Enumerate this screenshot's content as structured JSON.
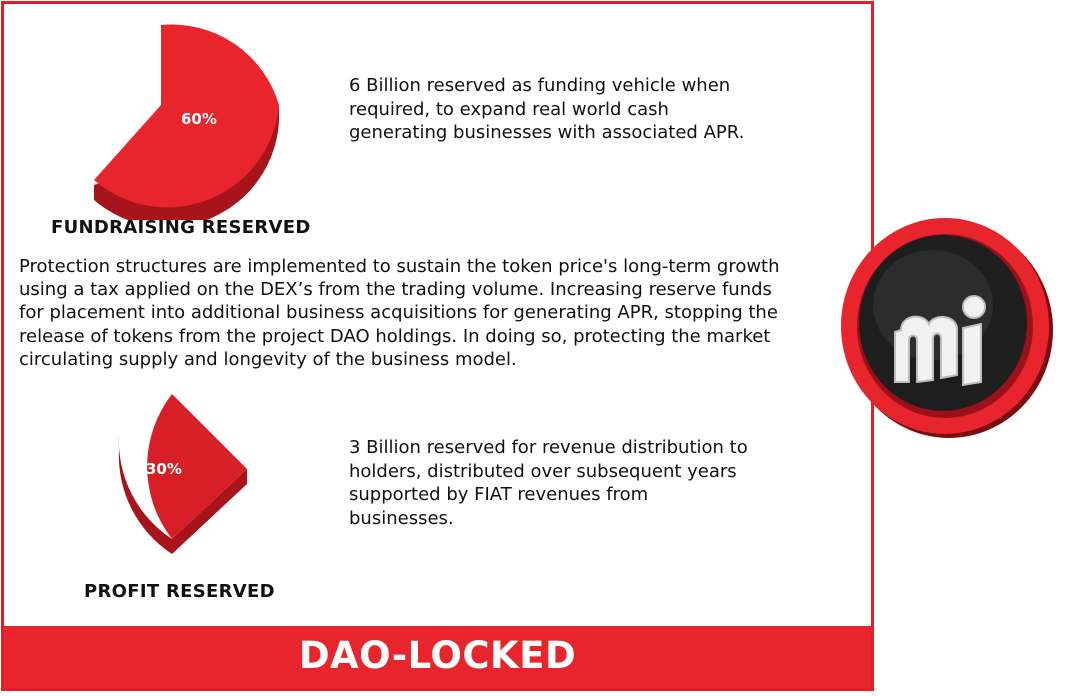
{
  "fundraising": {
    "percent_label": "60%",
    "heading": "FUNDRAISING RESERVED",
    "description": "6 Billion reserved as funding vehicle when required, to expand real world cash generating businesses with associated APR."
  },
  "protection_paragraph": "Protection structures are implemented to sustain the token price's long-term growth using a tax applied on the DEX’s from the trading volume. Increasing reserve funds for placement into additional business acquisitions for generating APR, stopping the release of tokens from the project DAO holdings. In doing so, protecting the market circulating supply and longevity of the business model.",
  "profit": {
    "percent_label": "30%",
    "heading": "PROFIT RESERVED",
    "description": "3 Billion reserved for revenue distribution to holders, distributed over subsequent years supported by FIAT revenues from businesses."
  },
  "footer": {
    "label": "DAO-LOCKED"
  },
  "colors": {
    "accent": "#e8242c",
    "dark_red": "#a8141b",
    "logo_dark": "#1a1a1a"
  },
  "icons": {
    "logo": "brand-logo-icon"
  }
}
